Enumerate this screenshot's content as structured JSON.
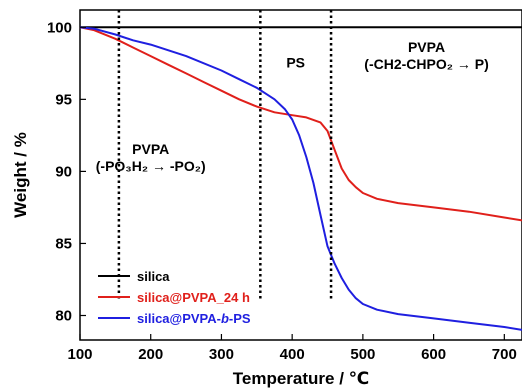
{
  "chart_data": {
    "type": "line",
    "xlabel": "Temperature / ℃",
    "ylabel": "Weight / %",
    "xlim": [
      100,
      725
    ],
    "ylim": [
      78.3,
      101.2
    ],
    "xticks": [
      "100",
      "200",
      "300",
      "400",
      "500",
      "600",
      "700"
    ],
    "yticks": [
      "80",
      "85",
      "90",
      "95",
      "100"
    ],
    "grid": false,
    "legend_position": "bottom-left",
    "series": [
      {
        "name": "silica",
        "color": "#000000",
        "x": [
          100,
          200,
          300,
          400,
          500,
          600,
          725
        ],
        "y": [
          100,
          100,
          100,
          100,
          100,
          100,
          100
        ]
      },
      {
        "name": "silica@PVPA_24 h",
        "color": "#e0201b",
        "x": [
          100,
          120,
          150,
          175,
          200,
          225,
          250,
          275,
          300,
          325,
          350,
          375,
          400,
          420,
          440,
          450,
          460,
          470,
          480,
          490,
          500,
          520,
          550,
          600,
          650,
          700,
          725
        ],
        "y": [
          100,
          99.8,
          99.2,
          98.6,
          98.0,
          97.4,
          96.8,
          96.2,
          95.6,
          95.0,
          94.5,
          94.1,
          93.9,
          93.75,
          93.4,
          92.8,
          91.5,
          90.2,
          89.4,
          88.9,
          88.5,
          88.1,
          87.8,
          87.5,
          87.2,
          86.8,
          86.6
        ]
      },
      {
        "name": "silica@PVPA-b-PS",
        "color": "#1f1fe0",
        "x": [
          100,
          120,
          150,
          175,
          200,
          250,
          300,
          325,
          350,
          375,
          390,
          400,
          410,
          420,
          430,
          440,
          450,
          460,
          470,
          480,
          490,
          500,
          520,
          550,
          600,
          650,
          700,
          725
        ],
        "y": [
          100,
          99.9,
          99.5,
          99.1,
          98.8,
          98.0,
          97.0,
          96.4,
          95.8,
          95.0,
          94.3,
          93.6,
          92.5,
          91.0,
          89.2,
          87.0,
          84.8,
          83.6,
          82.6,
          81.8,
          81.2,
          80.8,
          80.4,
          80.1,
          79.8,
          79.5,
          79.2,
          79.0
        ]
      }
    ],
    "vlines": [
      155,
      355,
      455
    ],
    "annotations": [
      {
        "lines": [
          "PVPA",
          "(-PO₃H₂ → -PO₂)"
        ],
        "x": 200,
        "y": 91.2
      },
      {
        "lines": [
          "PS"
        ],
        "x": 405,
        "y": 97.2
      },
      {
        "lines": [
          "PVPA",
          "(-CH2-CHPO₂ → P)"
        ],
        "x": 590,
        "y": 98.3
      }
    ],
    "legend": [
      "silica",
      "silica@PVPA_24 h",
      "silica@PVPA-b-PS"
    ]
  }
}
